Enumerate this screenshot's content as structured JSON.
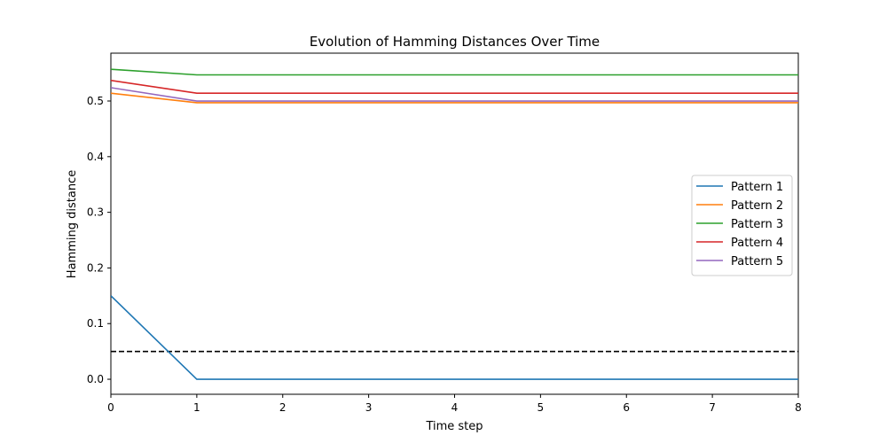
{
  "chart_data": {
    "type": "line",
    "title": "Evolution of Hamming Distances Over Time",
    "xlabel": "Time step",
    "ylabel": "Hamming distance",
    "xlim": [
      0,
      8
    ],
    "ylim": [
      -0.027,
      0.586
    ],
    "xticks": [
      0,
      1,
      2,
      3,
      4,
      5,
      6,
      7,
      8
    ],
    "yticks": [
      0.0,
      0.1,
      0.2,
      0.3,
      0.4,
      0.5
    ],
    "ytick_labels": [
      "0.0",
      "0.1",
      "0.2",
      "0.3",
      "0.4",
      "0.5"
    ],
    "grid": false,
    "legend_position": "center-right",
    "x": [
      0,
      1,
      2,
      3,
      4,
      5,
      6,
      7,
      8
    ],
    "series": [
      {
        "name": "Pattern 1",
        "color": "#1f77b4",
        "values": [
          0.15,
          0.0,
          0.0,
          0.0,
          0.0,
          0.0,
          0.0,
          0.0,
          0.0
        ]
      },
      {
        "name": "Pattern 2",
        "color": "#ff7f0e",
        "values": [
          0.514,
          0.497,
          0.497,
          0.497,
          0.497,
          0.497,
          0.497,
          0.497,
          0.497
        ]
      },
      {
        "name": "Pattern 3",
        "color": "#2ca02c",
        "values": [
          0.557,
          0.547,
          0.547,
          0.547,
          0.547,
          0.547,
          0.547,
          0.547,
          0.547
        ]
      },
      {
        "name": "Pattern 4",
        "color": "#d62728",
        "values": [
          0.537,
          0.514,
          0.514,
          0.514,
          0.514,
          0.514,
          0.514,
          0.514,
          0.514
        ]
      },
      {
        "name": "Pattern 5",
        "color": "#9467bd",
        "values": [
          0.524,
          0.5,
          0.5,
          0.5,
          0.5,
          0.5,
          0.5,
          0.5,
          0.5
        ]
      }
    ],
    "threshold": {
      "y": 0.05,
      "style": "dashed",
      "color": "#000000"
    }
  }
}
